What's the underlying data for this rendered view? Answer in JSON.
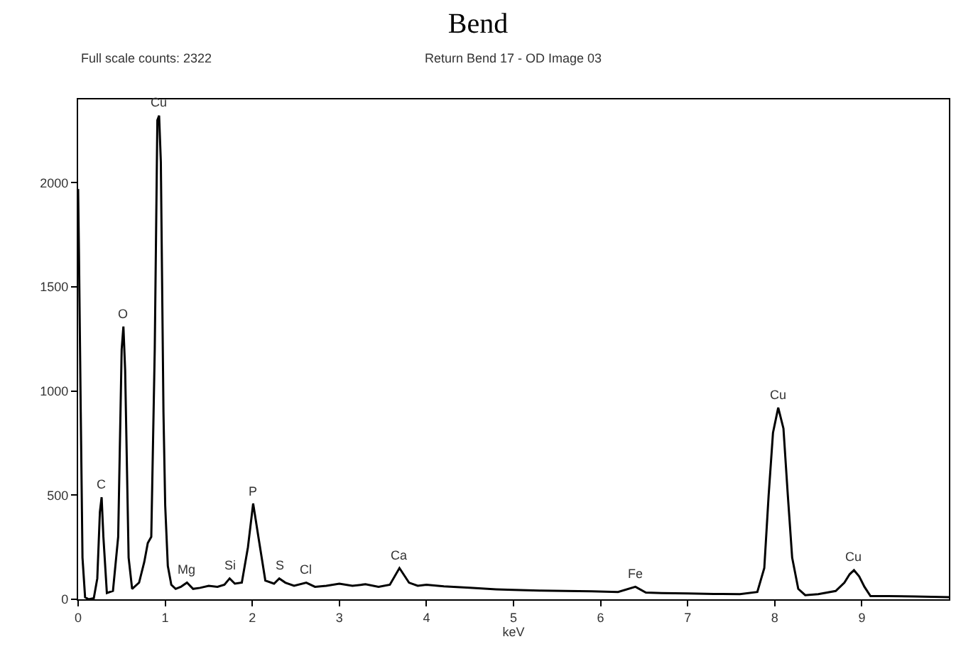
{
  "chart_data": {
    "type": "line",
    "title": "Bend",
    "subtitle": "Return Bend 17 - OD Image 03",
    "xlabel": "keV",
    "x": [
      0,
      0.01,
      0.03,
      0.05,
      0.08,
      0.12,
      0.18,
      0.22,
      0.25,
      0.27,
      0.29,
      0.33,
      0.4,
      0.46,
      0.5,
      0.52,
      0.54,
      0.58,
      0.62,
      0.7,
      0.76,
      0.8,
      0.84,
      0.88,
      0.91,
      0.93,
      0.95,
      0.98,
      1.0,
      1.03,
      1.07,
      1.12,
      1.18,
      1.25,
      1.32,
      1.4,
      1.5,
      1.6,
      1.68,
      1.74,
      1.8,
      1.88,
      1.95,
      2.01,
      2.07,
      2.15,
      2.25,
      2.31,
      2.38,
      2.48,
      2.62,
      2.72,
      2.85,
      3.0,
      3.15,
      3.3,
      3.45,
      3.58,
      3.69,
      3.8,
      3.9,
      4.0,
      4.2,
      4.5,
      4.8,
      5.0,
      5.3,
      5.6,
      5.9,
      6.2,
      6.4,
      6.52,
      6.7,
      7.0,
      7.3,
      7.6,
      7.8,
      7.88,
      7.93,
      7.98,
      8.04,
      8.1,
      8.15,
      8.2,
      8.27,
      8.35,
      8.5,
      8.7,
      8.8,
      8.86,
      8.91,
      8.97,
      9.03,
      9.1,
      9.3,
      9.6,
      10.0
    ],
    "series": [
      {
        "color": "#000000",
        "values": [
          1970,
          1650,
          900,
          200,
          10,
          0,
          5,
          100,
          420,
          490,
          300,
          30,
          40,
          300,
          1200,
          1310,
          1100,
          200,
          50,
          80,
          180,
          270,
          300,
          1200,
          2300,
          2322,
          2100,
          900,
          450,
          160,
          70,
          50,
          60,
          80,
          50,
          55,
          65,
          60,
          70,
          100,
          75,
          80,
          250,
          460,
          300,
          90,
          75,
          100,
          80,
          65,
          80,
          60,
          65,
          75,
          65,
          72,
          60,
          70,
          150,
          80,
          65,
          70,
          62,
          55,
          48,
          45,
          42,
          40,
          38,
          35,
          60,
          32,
          30,
          28,
          26,
          25,
          35,
          150,
          500,
          800,
          920,
          820,
          500,
          200,
          50,
          20,
          25,
          40,
          80,
          120,
          140,
          110,
          60,
          15,
          15,
          14,
          10
        ]
      }
    ],
    "xlim": [
      0,
      10
    ],
    "ylim": [
      0,
      2400
    ],
    "xticks": [
      0,
      1,
      2,
      3,
      4,
      5,
      6,
      7,
      8,
      9
    ],
    "yticks": [
      0,
      500,
      1000,
      1500,
      2000
    ],
    "annotations": [
      "Full scale counts: 2322",
      {
        "text": "C",
        "x": 0.27,
        "y": 490
      },
      {
        "text": "O",
        "x": 0.52,
        "y": 1310
      },
      {
        "text": "Cu",
        "x": 0.93,
        "y": 2322
      },
      {
        "text": "Mg",
        "x": 1.25,
        "y": 80
      },
      {
        "text": "Si",
        "x": 1.74,
        "y": 100
      },
      {
        "text": "P",
        "x": 2.01,
        "y": 460
      },
      {
        "text": "S",
        "x": 2.31,
        "y": 100
      },
      {
        "text": "Cl",
        "x": 2.62,
        "y": 80
      },
      {
        "text": "Ca",
        "x": 3.69,
        "y": 150
      },
      {
        "text": "Fe",
        "x": 6.4,
        "y": 60
      },
      {
        "text": "Cu",
        "x": 8.04,
        "y": 920
      },
      {
        "text": "Cu",
        "x": 8.91,
        "y": 140
      }
    ]
  }
}
